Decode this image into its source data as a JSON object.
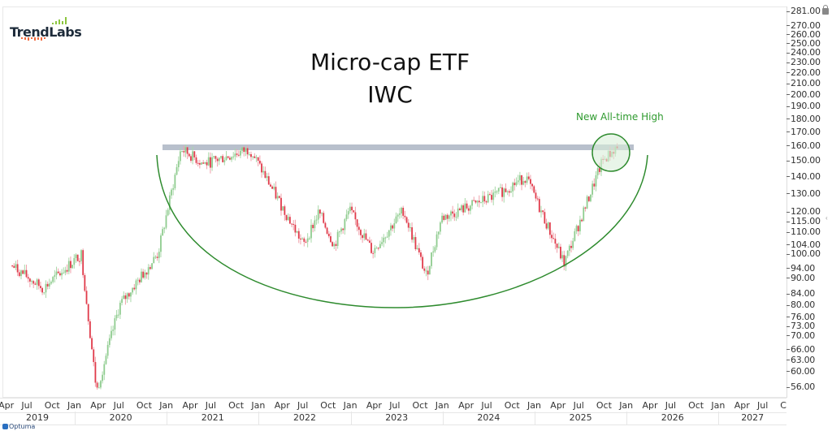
{
  "header": {
    "logo_text": "TrendLabs",
    "title_line1": "Micro-cap ETF",
    "title_line2": "IWC"
  },
  "annotation": {
    "text": "New All-time High",
    "color": "#2e9a2e"
  },
  "footer": {
    "brand": "Optuma"
  },
  "colors": {
    "up": "#8fcc8f",
    "down": "#e03a4a",
    "resistance": "#b8c0cc",
    "arc": "#2e8b2e",
    "circle_fill": "#d8efd8"
  },
  "chart_data": {
    "type": "candlestick",
    "title": "Micro-cap ETF IWC",
    "ticker": "IWC",
    "yscale": "log",
    "ylim": [
      54,
      281
    ],
    "y_ticks": [
      "281.00",
      "270.00",
      "260.00",
      "250.00",
      "240.00",
      "230.00",
      "220.00",
      "210.00",
      "200.00",
      "190.00",
      "180.00",
      "170.00",
      "160.00",
      "150.00",
      "140.00",
      "130.00",
      "120.00",
      "115.00",
      "110.00",
      "104.00",
      "100.00",
      "94.00",
      "90.00",
      "84.00",
      "80.00",
      "76.00",
      "73.00",
      "70.00",
      "66.00",
      "63.00",
      "60.00",
      "56.00"
    ],
    "x_month_labels": [
      "Apr",
      "Jul",
      "Oct",
      "Jan",
      "Apr",
      "Jul",
      "Oct",
      "Jan",
      "Apr",
      "Jul",
      "Oct",
      "Jan",
      "Apr",
      "Jul",
      "Oct",
      "Jan",
      "Apr",
      "Jul",
      "Oct",
      "Jan",
      "Apr",
      "Jul",
      "Oct",
      "Jan",
      "Apr",
      "Jul",
      "Oct",
      "Jan",
      "Apr",
      "Jul",
      "Oct",
      "Jan",
      "Apr",
      "Jul",
      "C"
    ],
    "x_year_labels": [
      "2019",
      "2020",
      "2021",
      "2022",
      "2023",
      "2024",
      "2025",
      "2026",
      "2027"
    ],
    "annotations": [
      {
        "type": "horizontal_band",
        "label": "Resistance (prior high)",
        "value": 158,
        "from": "2021-01",
        "to": "2025-12"
      },
      {
        "type": "arc",
        "label": "Rounding bottom / cup",
        "from": "2020-12",
        "to": "2025-12",
        "bottom_value": 80
      },
      {
        "type": "circle",
        "label": "New All-time High",
        "center": "2025-10",
        "value": 154
      }
    ],
    "key_points": [
      {
        "date": "2019-04",
        "close": 95
      },
      {
        "date": "2019-08",
        "close": 86
      },
      {
        "date": "2020-01",
        "close": 100
      },
      {
        "date": "2020-03",
        "close": 55
      },
      {
        "date": "2020-06",
        "close": 80
      },
      {
        "date": "2020-11",
        "close": 100
      },
      {
        "date": "2021-02",
        "close": 158
      },
      {
        "date": "2021-05",
        "close": 148
      },
      {
        "date": "2021-11",
        "close": 158
      },
      {
        "date": "2022-06",
        "close": 104
      },
      {
        "date": "2022-08",
        "close": 120
      },
      {
        "date": "2022-10",
        "close": 104
      },
      {
        "date": "2022-12",
        "close": 121
      },
      {
        "date": "2023-03",
        "close": 101
      },
      {
        "date": "2023-07",
        "close": 121
      },
      {
        "date": "2023-10",
        "close": 91
      },
      {
        "date": "2023-12",
        "close": 117
      },
      {
        "date": "2024-07",
        "close": 129
      },
      {
        "date": "2024-11",
        "close": 140
      },
      {
        "date": "2025-04",
        "close": 96
      },
      {
        "date": "2025-09",
        "close": 150
      },
      {
        "date": "2025-11",
        "close": 160
      }
    ]
  }
}
